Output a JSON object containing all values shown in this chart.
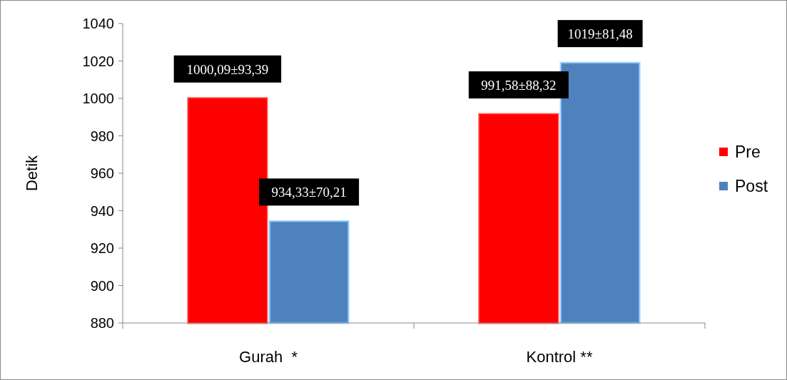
{
  "chart_data": {
    "type": "bar",
    "ylabel": "Detik",
    "categories": [
      "Gurah  *",
      "Kontrol **"
    ],
    "series": [
      {
        "name": "Pre",
        "color": "#ff0000",
        "values": [
          1000.09,
          991.58
        ],
        "value_labels": [
          "1000,09±93,39",
          "991,58±88,32"
        ]
      },
      {
        "name": "Post",
        "color": "#4f81bd",
        "values": [
          934.33,
          1019
        ],
        "value_labels": [
          "934,33±70,21",
          "1019±81,48"
        ]
      }
    ],
    "ylim": [
      880,
      1040
    ],
    "yticks": [
      880,
      900,
      920,
      940,
      960,
      980,
      1000,
      1020,
      1040
    ],
    "grid": false,
    "legend": "right"
  }
}
